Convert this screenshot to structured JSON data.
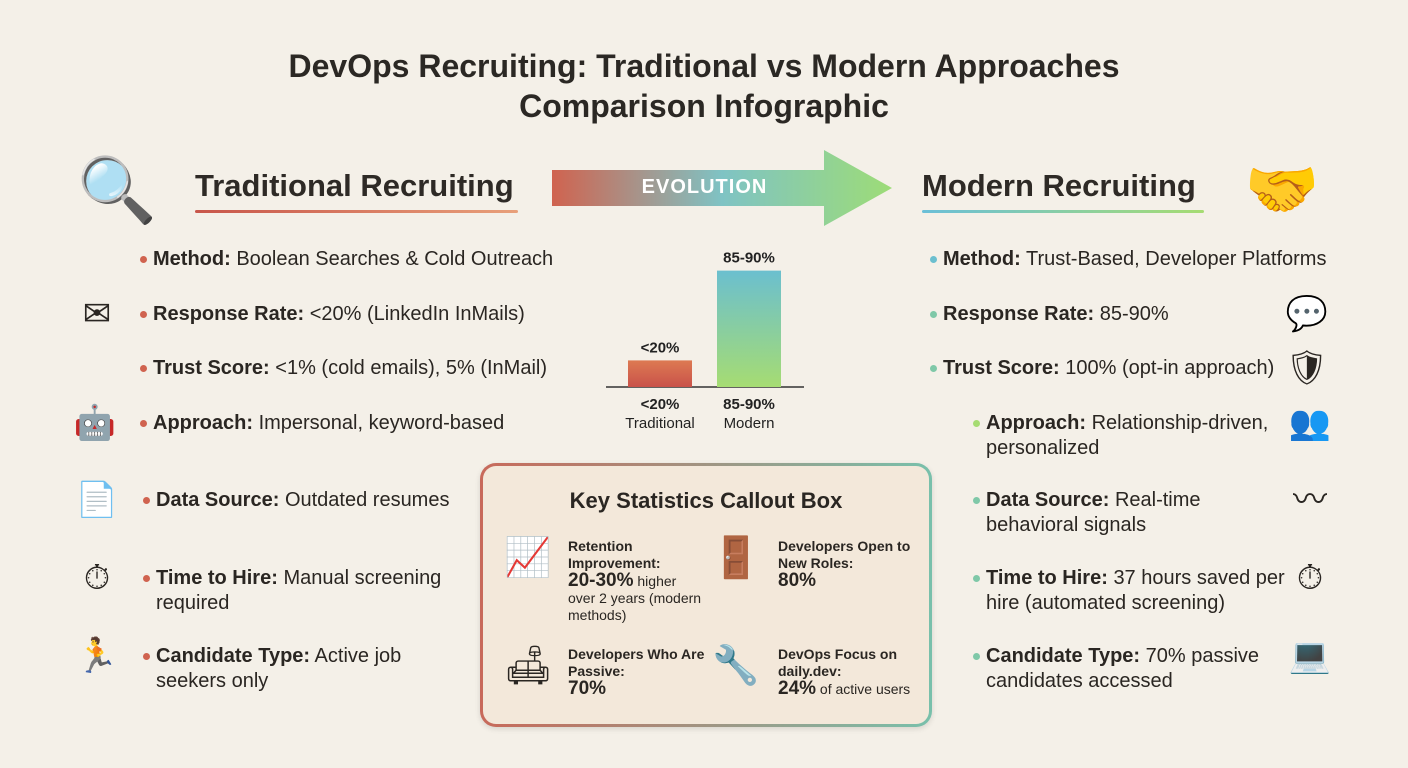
{
  "title": {
    "line1": "DevOps Recruiting: Traditional vs Modern Approaches",
    "line2": "Comparison Infographic"
  },
  "colors": {
    "traditional": "#d0634f",
    "modern_top": "#6bbfcf",
    "modern_bottom": "#a6dc72",
    "background": "#f4f0e8"
  },
  "traditional": {
    "heading": "Traditional Recruiting",
    "icon": "magnifying-glass-icon",
    "items": [
      {
        "label": "Method:",
        "text": "Boolean Searches & Cold Outreach",
        "icon": ""
      },
      {
        "label": "Response Rate:",
        "text": "<20% (LinkedIn InMails)",
        "icon": "broken-envelope-icon"
      },
      {
        "label": "Trust Score:",
        "text": "<1% (cold emails), 5% (InMail)",
        "icon": ""
      },
      {
        "label": "Approach:",
        "text": "Impersonal, keyword-based",
        "icon": "robot-icon"
      },
      {
        "label": "Data Source:",
        "text": "Outdated resumes",
        "icon": "paper-stack-icon"
      },
      {
        "label": "Time to Hire:",
        "text": "Manual screening required",
        "icon": "stopwatch-icon"
      },
      {
        "label": "Candidate Type:",
        "text": "Active job seekers only",
        "icon": "running-person-icon"
      }
    ]
  },
  "evolution": {
    "label": "EVOLUTION"
  },
  "modern": {
    "heading": "Modern Recruiting",
    "icon": "handshake-icon",
    "items": [
      {
        "label": "Method:",
        "text": "Trust-Based, Developer Platforms",
        "icon": ""
      },
      {
        "label": "Response Rate:",
        "text": "85-90%",
        "icon": "chat-bubbles-icon"
      },
      {
        "label": "Trust Score:",
        "text": "100% (opt-in approach)",
        "icon": "shield-check-icon"
      },
      {
        "label": "Approach:",
        "text": "Relationship-driven, personalized",
        "icon": "people-exchange-icon"
      },
      {
        "label": "Data Source:",
        "text": "Real-time behavioral signals",
        "icon": "pulse-graph-icon"
      },
      {
        "label": "Time to Hire:",
        "text": "37 hours saved per hire (automated screening)",
        "icon": "stopwatch-icon"
      },
      {
        "label": "Candidate Type:",
        "text": "70% passive candidates accessed",
        "icon": "person-laptop-icon"
      }
    ]
  },
  "chart_data": {
    "type": "bar",
    "categories": [
      "Traditional",
      "Modern"
    ],
    "values": [
      20,
      87.5
    ],
    "data_labels": [
      "<20%",
      "85-90%"
    ],
    "ylim": [
      0,
      100
    ],
    "grid": false,
    "title": "",
    "xlabel": "",
    "ylabel": ""
  },
  "callout": {
    "title": "Key Statistics Callout Box",
    "stats": [
      {
        "label": "Retention Improvement:",
        "value": "20-30%",
        "note1": "higher",
        "note2": "over 2 years (modern methods)",
        "icon": "growth-chart-gear-icon"
      },
      {
        "label": "Developers Open to New Roles:",
        "value": "80%",
        "icon": "open-door-icon"
      },
      {
        "label": "Developers Who Are Passive:",
        "value": "70%",
        "icon": "person-on-couch-icon"
      },
      {
        "label": "DevOps Focus on daily.dev:",
        "value": "24%",
        "note1": "of active users",
        "icon": "cloud-wrench-icon"
      }
    ]
  }
}
